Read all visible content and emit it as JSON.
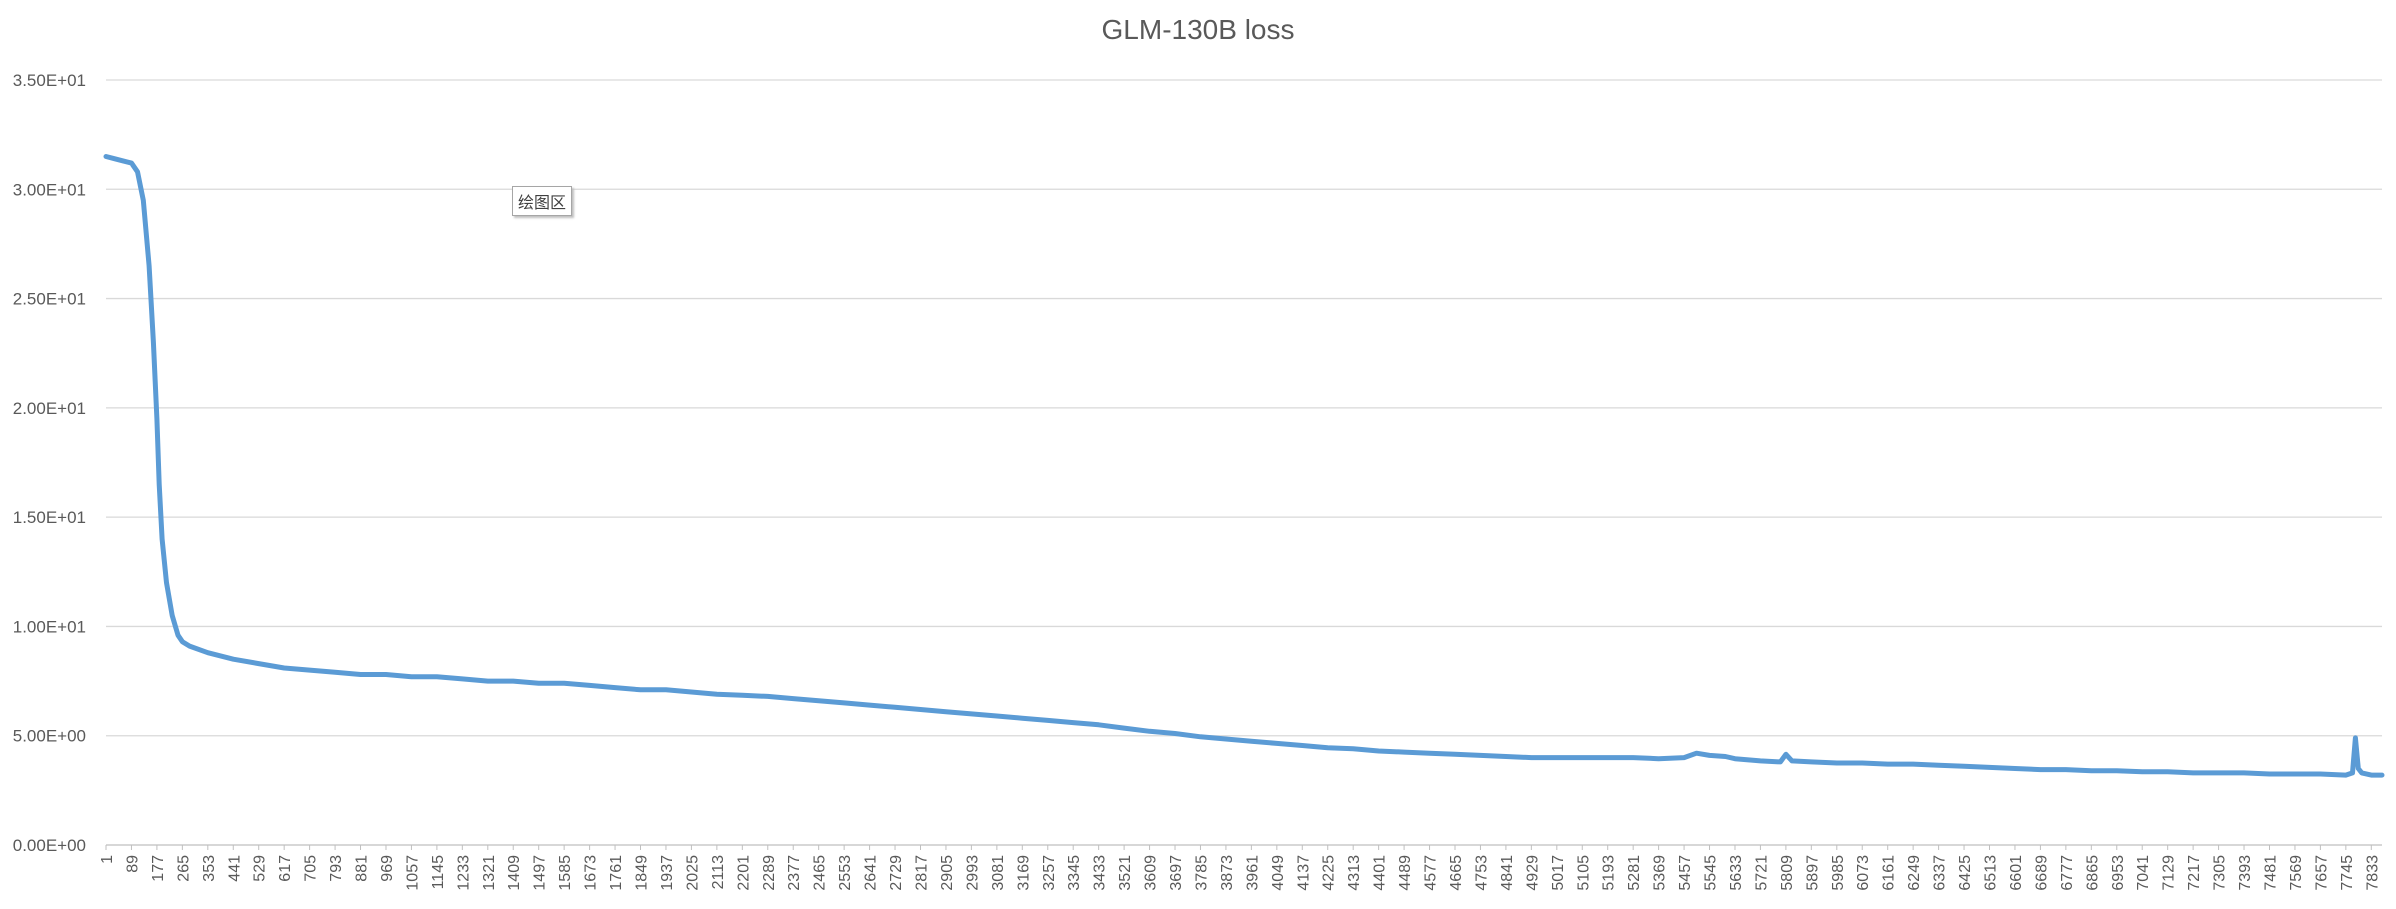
{
  "chart_data": {
    "type": "line",
    "title": "GLM-130B loss",
    "plot_area_label": "绘图区",
    "xlabel": "",
    "ylabel": "",
    "ylim": [
      0,
      35
    ],
    "y_ticks": [
      "0.00E+00",
      "5.00E+00",
      "1.00E+01",
      "1.50E+01",
      "2.00E+01",
      "2.50E+01",
      "3.00E+01",
      "3.50E+01"
    ],
    "x_ticks": [
      "1",
      "89",
      "177",
      "265",
      "353",
      "441",
      "529",
      "617",
      "705",
      "793",
      "881",
      "969",
      "1057",
      "1145",
      "1233",
      "1321",
      "1409",
      "1497",
      "1585",
      "1673",
      "1761",
      "1849",
      "1937",
      "2025",
      "2113",
      "2201",
      "2289",
      "2377",
      "2465",
      "2553",
      "2641",
      "2729",
      "2817",
      "2905",
      "2993",
      "3081",
      "3169",
      "3257",
      "3345",
      "3433",
      "3521",
      "3609",
      "3697",
      "3785",
      "3873",
      "3961",
      "4049",
      "4137",
      "4225",
      "4313",
      "4401",
      "4489",
      "4577",
      "4665",
      "4753",
      "4841",
      "4929",
      "5017",
      "5105",
      "5193",
      "5281",
      "5369",
      "5457",
      "5545",
      "5633",
      "5721",
      "5809",
      "5897",
      "5985",
      "6073",
      "6161",
      "6249",
      "6337",
      "6425",
      "6513",
      "6601",
      "6689",
      "6777",
      "6865",
      "6953",
      "7041",
      "7129",
      "7217",
      "7305",
      "7393",
      "7481",
      "7569",
      "7657",
      "7745",
      "7833"
    ],
    "grid": true,
    "line_color": "#5b9bd5",
    "series": [
      {
        "x": [
          1,
          30,
          60,
          89,
          110,
          130,
          150,
          165,
          177,
          185,
          195,
          210,
          230,
          250,
          265,
          290,
          353,
          441,
          529,
          617,
          705,
          793,
          881,
          969,
          1057,
          1145,
          1233,
          1321,
          1409,
          1497,
          1585,
          1673,
          1761,
          1849,
          1937,
          2025,
          2113,
          2201,
          2289,
          2377,
          2465,
          2553,
          2641,
          2729,
          2817,
          2905,
          2993,
          3081,
          3169,
          3257,
          3345,
          3433,
          3521,
          3609,
          3697,
          3785,
          3873,
          3961,
          4049,
          4137,
          4225,
          4313,
          4401,
          4489,
          4577,
          4665,
          4753,
          4841,
          4929,
          5017,
          5105,
          5193,
          5281,
          5369,
          5457,
          5500,
          5545,
          5600,
          5633,
          5721,
          5790,
          5809,
          5830,
          5897,
          5985,
          6073,
          6161,
          6249,
          6337,
          6425,
          6513,
          6601,
          6689,
          6777,
          6865,
          6953,
          7041,
          7129,
          7217,
          7305,
          7393,
          7481,
          7569,
          7657,
          7745,
          7768,
          7778,
          7788,
          7800,
          7833,
          7870
        ],
        "y": [
          31.5,
          31.4,
          31.3,
          31.2,
          30.8,
          29.5,
          26.5,
          23.0,
          19.5,
          16.5,
          14.0,
          12.0,
          10.5,
          9.6,
          9.3,
          9.1,
          8.8,
          8.5,
          8.3,
          8.1,
          8.0,
          7.9,
          7.8,
          7.8,
          7.7,
          7.7,
          7.6,
          7.5,
          7.5,
          7.4,
          7.4,
          7.3,
          7.2,
          7.1,
          7.1,
          7.0,
          6.9,
          6.85,
          6.8,
          6.7,
          6.6,
          6.5,
          6.4,
          6.3,
          6.2,
          6.1,
          6.0,
          5.9,
          5.8,
          5.7,
          5.6,
          5.5,
          5.35,
          5.2,
          5.1,
          4.95,
          4.85,
          4.75,
          4.65,
          4.55,
          4.45,
          4.4,
          4.3,
          4.25,
          4.2,
          4.15,
          4.1,
          4.05,
          4.0,
          4.0,
          4.0,
          4.0,
          4.0,
          3.95,
          4.0,
          4.2,
          4.1,
          4.05,
          3.95,
          3.85,
          3.8,
          4.15,
          3.85,
          3.8,
          3.75,
          3.75,
          3.7,
          3.7,
          3.65,
          3.6,
          3.55,
          3.5,
          3.45,
          3.45,
          3.4,
          3.4,
          3.35,
          3.35,
          3.3,
          3.3,
          3.3,
          3.25,
          3.25,
          3.25,
          3.2,
          3.3,
          4.9,
          3.5,
          3.3,
          3.2,
          3.2
        ]
      }
    ]
  }
}
